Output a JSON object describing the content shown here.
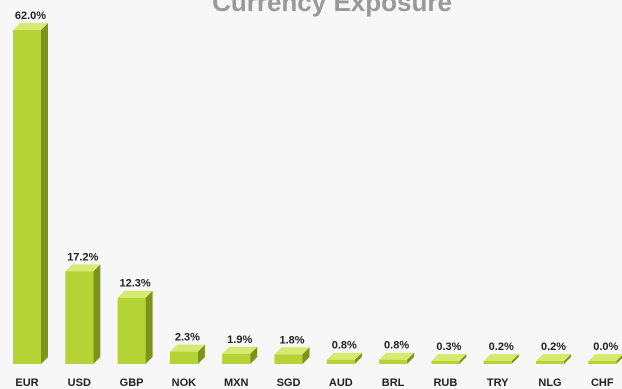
{
  "chart_data": {
    "type": "bar",
    "title": "Currency Exposure",
    "categories": [
      "EUR",
      "USD",
      "GBP",
      "NOK",
      "MXN",
      "SGD",
      "AUD",
      "BRL",
      "RUB",
      "TRY",
      "NLG",
      "CHF"
    ],
    "values": [
      62.0,
      17.2,
      12.3,
      2.3,
      1.9,
      1.8,
      0.8,
      0.8,
      0.3,
      0.2,
      0.2,
      0.0
    ],
    "value_labels": [
      "62.0%",
      "17.2%",
      "12.3%",
      "2.3%",
      "1.9%",
      "1.8%",
      "0.8%",
      "0.8%",
      "0.3%",
      "0.2%",
      "0.2%",
      "0.0%"
    ],
    "xlabel": "",
    "ylabel": "",
    "ylim": [
      0,
      62
    ],
    "grid": false,
    "legend": "none",
    "bar_style": "3d",
    "colors": {
      "front": "#b5d334",
      "side": "#7c9418",
      "top": "#d6ea72",
      "text": "#222222",
      "title": "#999999",
      "background": "#f7f7f7"
    }
  }
}
